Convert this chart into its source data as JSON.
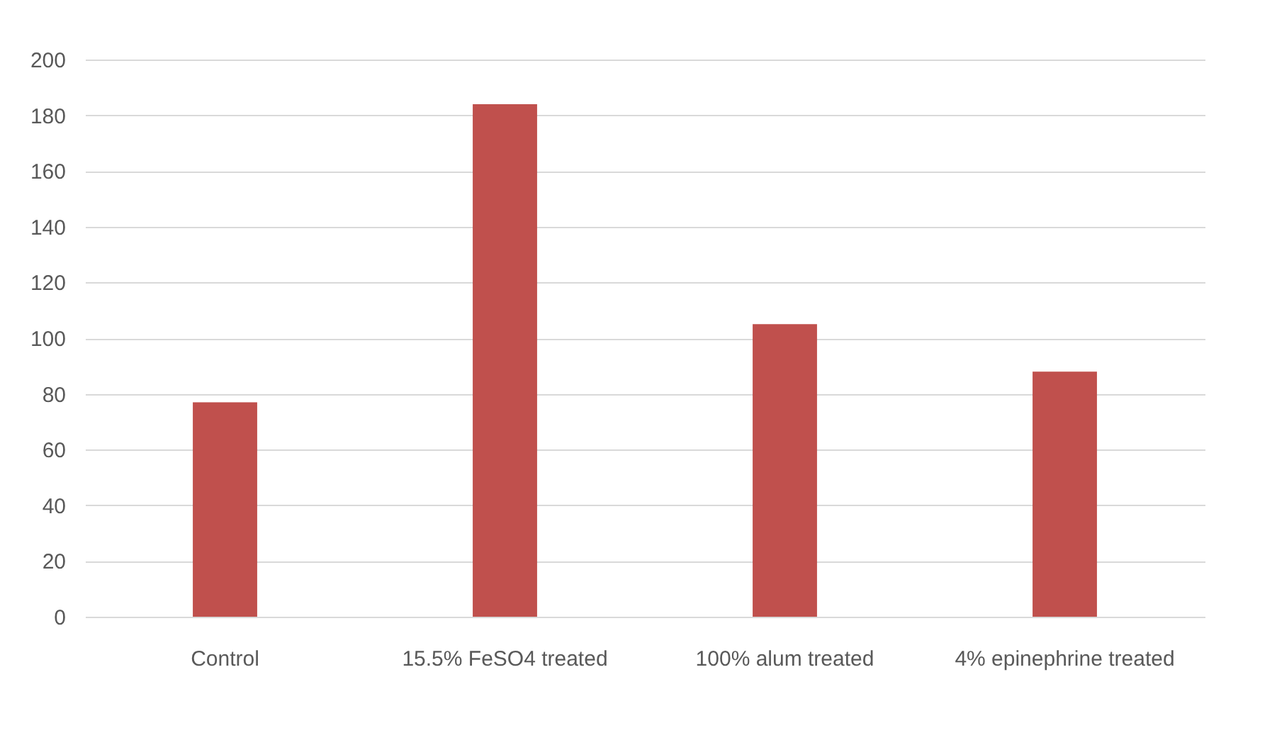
{
  "chart_data": {
    "type": "bar",
    "categories": [
      "Control",
      "15.5% FeSO4 treated",
      "100% alum treated",
      "4% epinephrine treated"
    ],
    "values": [
      77,
      184,
      105,
      88
    ],
    "color": "#c0504d",
    "ylim": [
      0,
      200
    ],
    "yticks": [
      0,
      20,
      40,
      60,
      80,
      100,
      120,
      140,
      160,
      180,
      200
    ],
    "grid": "y"
  }
}
